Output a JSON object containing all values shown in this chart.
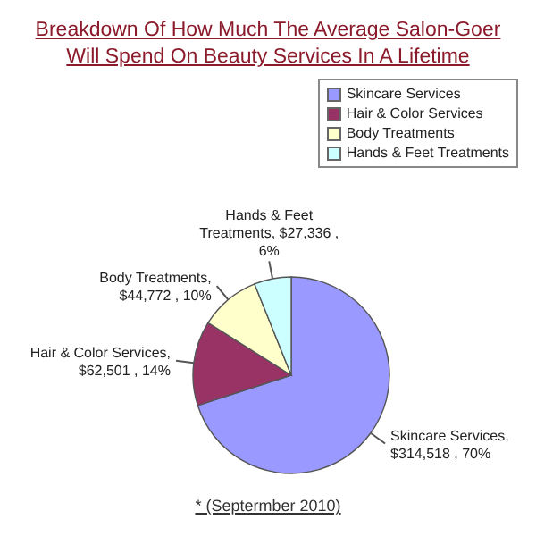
{
  "chart_data": {
    "type": "pie",
    "title": "Breakdown Of How Much The Average Salon-Goer Will Spend On Beauty Services In A Lifetime",
    "categories": [
      "Skincare Services",
      "Hair & Color Services",
      "Body Treatments",
      "Hands & Feet Treatments"
    ],
    "values": [
      314518,
      62501,
      44772,
      27336
    ],
    "colors": [
      "#9999ff",
      "#993366",
      "#ffffcc",
      "#ccffff"
    ],
    "value_labels": [
      "Skincare Services, $314,518 , 70%",
      "Hair & Color Services, $62,501 , 14%",
      "Body Treatments, $44,772 , 10%",
      "Hands & Feet Treatments, $27,336 , 6%"
    ],
    "legend": "top right",
    "annotations": [
      "* (Septermber 2010)"
    ]
  }
}
